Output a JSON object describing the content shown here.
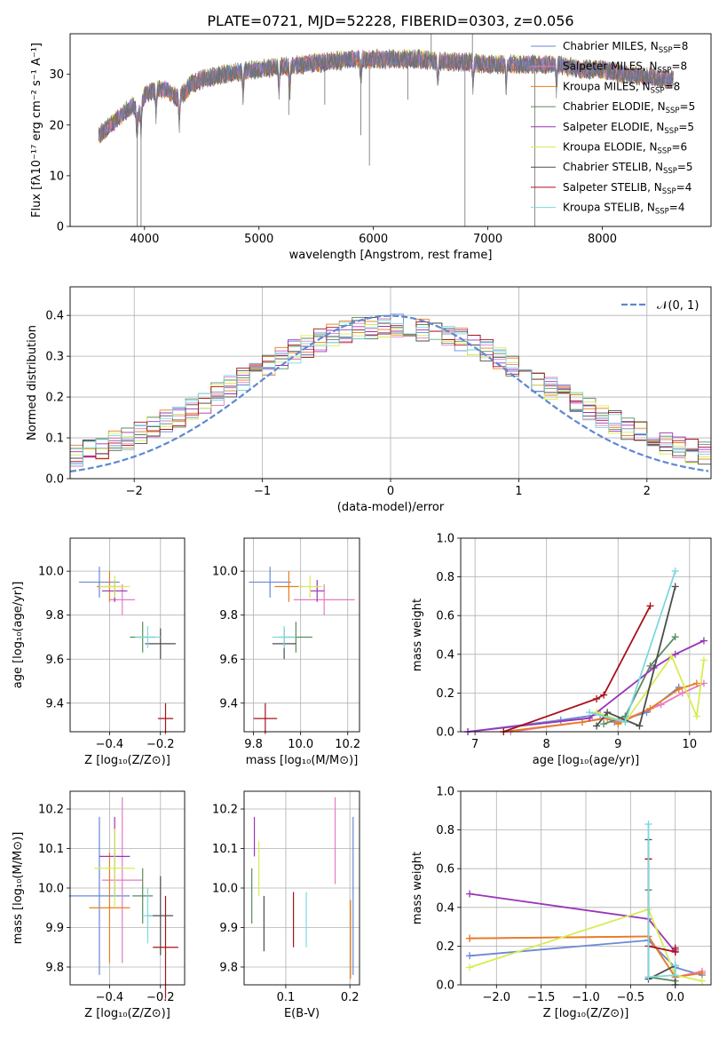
{
  "figure": {
    "title": "PLATE=0721, MJD=52228, FIBERID=0303, z=0.056"
  },
  "palette": [
    "#6a87d6",
    "#e77ac3",
    "#e77d1f",
    "#5a8a5e",
    "#9a34b8",
    "#d7ec53",
    "#4d4d4d",
    "#a8121b",
    "#7dd8de"
  ],
  "chart_data": [
    {
      "id": "spectrum",
      "type": "line",
      "xlabel": "wavelength [Angstrom, rest frame]",
      "ylabel": "Flux [fλ10⁻¹⁷ erg cm⁻² s⁻¹ A⁻¹]",
      "xlim": [
        3350,
        8950
      ],
      "ylim": [
        0,
        38
      ],
      "xticks": [
        "4000",
        "5000",
        "6000",
        "7000",
        "8000"
      ],
      "yticks": [
        "0",
        "10",
        "20",
        "30"
      ],
      "legend": "top-right",
      "series": [
        {
          "name": "Chabrier MILES, N_SSP=8",
          "color": "#6a87d6",
          "offset": 0.0
        },
        {
          "name": "Salpeter MILES, N_SSP=8",
          "color": "#e77ac3",
          "offset": 0.3
        },
        {
          "name": "Kroupa MILES, N_SSP=8",
          "color": "#e77d1f",
          "offset": -0.3
        },
        {
          "name": "Chabrier ELODIE, N_SSP=5",
          "color": "#5a8a5e",
          "offset": 0.2
        },
        {
          "name": "Salpeter ELODIE, N_SSP=5",
          "color": "#9a34b8",
          "offset": -0.2
        },
        {
          "name": "Kroupa ELODIE, N_SSP=6",
          "color": "#d7ec53",
          "offset": 0.4
        },
        {
          "name": "Chabrier STELIB, N_SSP=5",
          "color": "#4d4d4d",
          "offset": -0.4
        },
        {
          "name": "Salpeter STELIB, N_SSP=4",
          "color": "#a8121b",
          "offset": 0.1
        },
        {
          "name": "Kroupa STELIB, N_SSP=4",
          "color": "#7dd8de",
          "offset": -0.1
        }
      ],
      "continuum_x": [
        3600,
        3700,
        3800,
        3900,
        3950,
        4000,
        4100,
        4200,
        4300,
        4400,
        4500,
        4600,
        4800,
        5000,
        5200,
        5400,
        5600,
        5800,
        6000,
        6200,
        6400,
        6600,
        6800,
        7000,
        7200,
        7400,
        7600,
        7800,
        8000,
        8200,
        8400,
        8600
      ],
      "continuum_y": [
        18,
        20,
        22,
        24,
        22,
        26,
        27,
        27,
        25,
        28,
        29,
        29.5,
        30.5,
        31,
        31.5,
        32,
        32.5,
        33,
        33,
        33,
        33,
        32.5,
        32.5,
        32,
        32,
        32,
        32,
        31,
        31,
        30,
        29.5,
        29
      ],
      "absorption_lines": [
        3934,
        3969,
        4101,
        4304,
        4861,
        5175,
        5270,
        5890,
        6563,
        6870,
        7160,
        7600
      ],
      "spikes_down": [
        {
          "x": 3935,
          "y": 0
        },
        {
          "x": 3970,
          "y": 0
        },
        {
          "x": 5260,
          "y": 22
        },
        {
          "x": 5575,
          "y": 24
        },
        {
          "x": 5890,
          "y": 18
        },
        {
          "x": 5965,
          "y": 12
        },
        {
          "x": 6300,
          "y": 25
        },
        {
          "x": 6800,
          "y": 0
        },
        {
          "x": 7410,
          "y": 0
        }
      ],
      "spikes_up": [
        {
          "x": 6505,
          "y": 38
        },
        {
          "x": 6865,
          "y": 38
        }
      ]
    },
    {
      "id": "residuals",
      "type": "histogram",
      "xlabel": "(data-model)/error",
      "ylabel": "Normed distribution",
      "xlim": [
        -2.5,
        2.5
      ],
      "ylim": [
        0,
        0.47
      ],
      "xticks": [
        "−2",
        "−1",
        "0",
        "1",
        "2"
      ],
      "yticks": [
        "0.0",
        "0.1",
        "0.2",
        "0.3",
        "0.4"
      ],
      "legend_label": "𝒩(0, 1)",
      "bin_width": 0.1,
      "reference_curve": {
        "mu": 0,
        "sigma": 1,
        "color": "#5f88d1"
      }
    },
    {
      "id": "age-vs-Z",
      "type": "scatter",
      "xlabel": "Z [log₁₀(Z/Z⊙)]",
      "ylabel": "age  [log₁₀(age/yr)]",
      "xlim": [
        -0.555,
        -0.105
      ],
      "ylim": [
        9.27,
        10.15
      ],
      "xticks": [
        -0.4,
        -0.2
      ],
      "xticklabels": [
        "−0.4",
        "−0.2"
      ],
      "yticks": [
        9.4,
        9.6,
        9.8,
        10.0
      ],
      "yticklabels": [
        "9.4",
        "9.6",
        "9.8",
        "10.0"
      ],
      "points": [
        {
          "color": "#6a87d6",
          "x": -0.44,
          "y": 9.95,
          "xerr": 0.08,
          "yerr": 0.07
        },
        {
          "color": "#e77ac3",
          "x": -0.35,
          "y": 9.87,
          "xerr": 0.05,
          "yerr": 0.07
        },
        {
          "color": "#e77d1f",
          "x": -0.4,
          "y": 9.93,
          "xerr": 0.05,
          "yerr": 0.07
        },
        {
          "color": "#5a8a5e",
          "x": -0.27,
          "y": 9.7,
          "xerr": 0.05,
          "yerr": 0.07
        },
        {
          "color": "#9a34b8",
          "x": -0.38,
          "y": 9.91,
          "xerr": 0.05,
          "yerr": 0.05
        },
        {
          "color": "#d7ec53",
          "x": -0.38,
          "y": 9.93,
          "xerr": 0.06,
          "yerr": 0.05
        },
        {
          "color": "#4d4d4d",
          "x": -0.2,
          "y": 9.67,
          "xerr": 0.06,
          "yerr": 0.07
        },
        {
          "color": "#a8121b",
          "x": -0.18,
          "y": 9.33,
          "xerr": 0.03,
          "yerr": 0.07
        },
        {
          "color": "#7dd8de",
          "x": -0.25,
          "y": 9.7,
          "xerr": 0.05,
          "yerr": 0.05
        }
      ]
    },
    {
      "id": "age-vs-mass",
      "type": "scatter",
      "xlabel": "mass [log₁₀(M/M⊙)]",
      "ylabel": "",
      "xlim": [
        9.76,
        10.25
      ],
      "ylim": [
        9.27,
        10.15
      ],
      "xticks": [
        9.8,
        10.0,
        10.2
      ],
      "xticklabels": [
        "9.8",
        "10.0",
        "10.2"
      ],
      "yticks": [
        9.4,
        9.6,
        9.8,
        10.0
      ],
      "yticklabels": [
        "9.4",
        "9.6",
        "9.8",
        "10.0"
      ],
      "points": [
        {
          "color": "#6a87d6",
          "x": 9.87,
          "y": 9.95,
          "xerr": 0.09,
          "yerr": 0.07
        },
        {
          "color": "#e77ac3",
          "x": 10.1,
          "y": 9.87,
          "xerr": 0.13,
          "yerr": 0.07
        },
        {
          "color": "#e77d1f",
          "x": 9.95,
          "y": 9.93,
          "xerr": 0.06,
          "yerr": 0.07
        },
        {
          "color": "#5a8a5e",
          "x": 9.98,
          "y": 9.7,
          "xerr": 0.07,
          "yerr": 0.07
        },
        {
          "color": "#9a34b8",
          "x": 10.07,
          "y": 9.91,
          "xerr": 0.03,
          "yerr": 0.05
        },
        {
          "color": "#d7ec53",
          "x": 10.04,
          "y": 9.93,
          "xerr": 0.05,
          "yerr": 0.05
        },
        {
          "color": "#4d4d4d",
          "x": 9.93,
          "y": 9.67,
          "xerr": 0.05,
          "yerr": 0.07
        },
        {
          "color": "#a8121b",
          "x": 9.85,
          "y": 9.33,
          "xerr": 0.05,
          "yerr": 0.07
        },
        {
          "color": "#7dd8de",
          "x": 9.93,
          "y": 9.7,
          "xerr": 0.05,
          "yerr": 0.05
        }
      ]
    },
    {
      "id": "weight-vs-age",
      "type": "line",
      "xlabel": "age  [log₁₀(age/yr)]",
      "ylabel": "mass weight",
      "xlim": [
        6.8,
        10.3
      ],
      "ylim": [
        0,
        1.0
      ],
      "xticks": [
        7,
        8,
        9,
        10
      ],
      "xticklabels": [
        "7",
        "8",
        "9",
        "10"
      ],
      "yticks": [
        0,
        0.2,
        0.4,
        0.6,
        0.8,
        1.0
      ],
      "yticklabels": [
        "0.0",
        "0.2",
        "0.4",
        "0.6",
        "0.8",
        "1.0"
      ],
      "series": [
        {
          "color": "#6a87d6",
          "x": [
            6.9,
            8.2,
            8.75,
            8.95,
            9.4,
            9.85
          ],
          "y": [
            0,
            0.06,
            0.09,
            0.05,
            0.1,
            0.23
          ]
        },
        {
          "color": "#e77ac3",
          "x": [
            7.5,
            8.5,
            8.8,
            9.0,
            9.6,
            9.9,
            10.2
          ],
          "y": [
            0,
            0.05,
            0.07,
            0.05,
            0.14,
            0.2,
            0.25
          ]
        },
        {
          "color": "#e77d1f",
          "x": [
            7.4,
            8.5,
            8.85,
            9.0,
            9.45,
            9.85,
            10.1
          ],
          "y": [
            0,
            0.05,
            0.07,
            0.04,
            0.12,
            0.22,
            0.25
          ]
        },
        {
          "color": "#5a8a5e",
          "x": [
            8.8,
            9.1,
            9.45,
            9.8
          ],
          "y": [
            0.04,
            0.08,
            0.34,
            0.49
          ]
        },
        {
          "color": "#9a34b8",
          "x": [
            6.9,
            8.6,
            9.5,
            9.8,
            10.2
          ],
          "y": [
            0,
            0.07,
            0.33,
            0.4,
            0.47
          ]
        },
        {
          "color": "#d7ec53",
          "x": [
            8.7,
            9.1,
            9.75,
            10.1,
            10.2
          ],
          "y": [
            0.1,
            0.05,
            0.39,
            0.08,
            0.37
          ]
        },
        {
          "color": "#4d4d4d",
          "x": [
            8.7,
            8.85,
            9.3,
            9.8
          ],
          "y": [
            0.03,
            0.1,
            0.03,
            0.75
          ]
        },
        {
          "color": "#a8121b",
          "x": [
            7.4,
            8.7,
            8.8,
            9.45
          ],
          "y": [
            0,
            0.17,
            0.19,
            0.65
          ]
        },
        {
          "color": "#7dd8de",
          "x": [
            8.6,
            9.1,
            9.8
          ],
          "y": [
            0.1,
            0.05,
            0.83
          ]
        }
      ]
    },
    {
      "id": "mass-vs-Z",
      "type": "scatter",
      "xlabel": "Z [log₁₀(Z/Z⊙)]",
      "ylabel": "mass [log₁₀(M/M⊙)]",
      "xlim": [
        -0.555,
        -0.105
      ],
      "ylim": [
        9.755,
        10.245
      ],
      "xticks": [
        -0.4,
        -0.2
      ],
      "xticklabels": [
        "−0.4",
        "−0.2"
      ],
      "yticks": [
        9.8,
        9.9,
        10.0,
        10.1,
        10.2
      ],
      "yticklabels": [
        "9.8",
        "9.9",
        "10.0",
        "10.1",
        "10.2"
      ],
      "points": [
        {
          "color": "#6a87d6",
          "x": -0.44,
          "y": 9.98,
          "xerr": 0.12,
          "yerr": 0.2
        },
        {
          "color": "#e77ac3",
          "x": -0.35,
          "y": 10.02,
          "xerr": 0.08,
          "yerr": 0.21
        },
        {
          "color": "#e77d1f",
          "x": -0.4,
          "y": 9.95,
          "xerr": 0.08,
          "yerr": 0.14
        },
        {
          "color": "#5a8a5e",
          "x": -0.27,
          "y": 9.98,
          "xerr": 0.04,
          "yerr": 0.07
        },
        {
          "color": "#9a34b8",
          "x": -0.38,
          "y": 10.08,
          "xerr": 0.06,
          "yerr": 0.1
        },
        {
          "color": "#d7ec53",
          "x": -0.38,
          "y": 10.05,
          "xerr": 0.08,
          "yerr": 0.1
        },
        {
          "color": "#4d4d4d",
          "x": -0.2,
          "y": 9.93,
          "xerr": 0.05,
          "yerr": 0.1
        },
        {
          "color": "#a8121b",
          "x": -0.18,
          "y": 9.85,
          "xerr": 0.05,
          "yerr": 0.13
        },
        {
          "color": "#7dd8de",
          "x": -0.25,
          "y": 9.93,
          "xerr": 0.02,
          "yerr": 0.07
        }
      ]
    },
    {
      "id": "mass-vs-ebv",
      "type": "scatter",
      "xlabel": "E(B-V)",
      "ylabel": "",
      "xlim": [
        0.035,
        0.215
      ],
      "ylim": [
        9.755,
        10.245
      ],
      "xticks": [
        0.1,
        0.2
      ],
      "xticklabels": [
        "0.1",
        "0.2"
      ],
      "yticks": [
        9.8,
        9.9,
        10.0,
        10.1,
        10.2
      ],
      "yticklabels": [
        "9.8",
        "9.9",
        "10.0",
        "10.1",
        "10.2"
      ],
      "points": [
        {
          "color": "#6a87d6",
          "x": 0.205,
          "y": 9.98,
          "xerr": 0,
          "yerr": 0.2
        },
        {
          "color": "#e77ac3",
          "x": 0.177,
          "y": 10.12,
          "xerr": 0,
          "yerr": 0.11
        },
        {
          "color": "#e77d1f",
          "x": 0.201,
          "y": 9.87,
          "xerr": 0,
          "yerr": 0.1
        },
        {
          "color": "#5a8a5e",
          "x": 0.047,
          "y": 9.98,
          "xerr": 0,
          "yerr": 0.07
        },
        {
          "color": "#9a34b8",
          "x": 0.051,
          "y": 10.13,
          "xerr": 0,
          "yerr": 0.05
        },
        {
          "color": "#d7ec53",
          "x": 0.058,
          "y": 10.05,
          "xerr": 0,
          "yerr": 0.07
        },
        {
          "color": "#4d4d4d",
          "x": 0.066,
          "y": 9.91,
          "xerr": 0,
          "yerr": 0.07
        },
        {
          "color": "#a8121b",
          "x": 0.112,
          "y": 9.92,
          "xerr": 0,
          "yerr": 0.07
        },
        {
          "color": "#7dd8de",
          "x": 0.132,
          "y": 9.92,
          "xerr": 0,
          "yerr": 0.07
        }
      ]
    },
    {
      "id": "weight-vs-Z",
      "type": "line",
      "xlabel": "Z [log₁₀(Z/Z⊙)]",
      "ylabel": "mass weight",
      "xlim": [
        -2.4,
        0.4
      ],
      "ylim": [
        0,
        1.0
      ],
      "xticks": [
        -2.0,
        -1.5,
        -1.0,
        -0.5,
        0.0
      ],
      "xticklabels": [
        "−2.0",
        "−1.5",
        "−1.0",
        "−0.5",
        "0.0"
      ],
      "yticks": [
        0,
        0.2,
        0.4,
        0.6,
        0.8,
        1.0
      ],
      "yticklabels": [
        "0.0",
        "0.2",
        "0.4",
        "0.6",
        "0.8",
        "1.0"
      ],
      "series": [
        {
          "color": "#6a87d6",
          "x": [
            -2.3,
            -0.3,
            0.0,
            0.3
          ],
          "y": [
            0.15,
            0.23,
            0.09,
            0.05
          ]
        },
        {
          "color": "#e77ac3",
          "x": [
            -2.3,
            -0.3,
            0.0,
            0.3
          ],
          "y": [
            0.24,
            0.25,
            0.04,
            0.07
          ]
        },
        {
          "color": "#e77d1f",
          "x": [
            -2.3,
            -0.3,
            0.0,
            0.3
          ],
          "y": [
            0.24,
            0.25,
            0.04,
            0.06
          ]
        },
        {
          "color": "#5a8a5e",
          "x": [
            -0.3,
            -0.3,
            0.0,
            0.0
          ],
          "y": [
            0.49,
            0.04,
            0.02,
            0.05
          ]
        },
        {
          "color": "#9a34b8",
          "x": [
            -2.3,
            -0.3,
            0.0,
            0.0
          ],
          "y": [
            0.47,
            0.34,
            0.17,
            0.18
          ]
        },
        {
          "color": "#d7ec53",
          "x": [
            -2.3,
            -0.3,
            0.0,
            0.3
          ],
          "y": [
            0.09,
            0.39,
            0.05,
            0.02
          ]
        },
        {
          "color": "#4d4d4d",
          "x": [
            -0.3,
            -0.3,
            0.0,
            0.0
          ],
          "y": [
            0.75,
            0.03,
            0.1,
            0.0
          ]
        },
        {
          "color": "#a8121b",
          "x": [
            -0.3,
            -0.3,
            0.0,
            0.0
          ],
          "y": [
            0.65,
            0.2,
            0.17,
            0.19
          ]
        },
        {
          "color": "#7dd8de",
          "x": [
            -0.3,
            -0.3,
            0.0,
            0.0
          ],
          "y": [
            0.83,
            0.04,
            0.05,
            0.1
          ]
        }
      ]
    }
  ]
}
